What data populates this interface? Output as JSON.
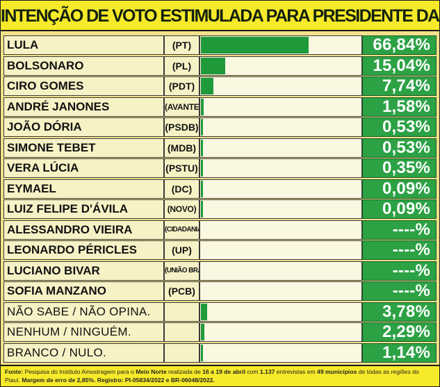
{
  "title": "INTENÇÃO DE VOTO ESTIMULADA PARA PRESIDENTE DA REPÚBLICA",
  "chart_data": {
    "type": "bar",
    "orientation": "horizontal",
    "title": "INTENÇÃO DE VOTO ESTIMULADA PARA PRESIDENTE DA REPÚBLICA",
    "xlim": [
      0,
      100
    ],
    "grid": false,
    "legend": "none",
    "rows": [
      {
        "name": "LULA",
        "party": "(PT)",
        "value": 66.84,
        "label": "66,84%",
        "style": "bold"
      },
      {
        "name": "BOLSONARO",
        "party": "(PL)",
        "value": 15.04,
        "label": "15,04%",
        "style": "bold"
      },
      {
        "name": "CIRO GOMES",
        "party": "(PDT)",
        "value": 7.74,
        "label": "7,74%",
        "style": "bold"
      },
      {
        "name": "ANDRÉ JANONES",
        "party": "(AVANTE)",
        "value": 1.58,
        "label": "1,58%",
        "style": "bold",
        "party_size": "small"
      },
      {
        "name": "JOÃO DÓRIA",
        "party": "(PSDB)",
        "value": 0.53,
        "label": "0,53%",
        "style": "bold"
      },
      {
        "name": "SIMONE TEBET",
        "party": "(MDB)",
        "value": 0.53,
        "label": "0,53%",
        "style": "bold"
      },
      {
        "name": "VERA LÚCIA",
        "party": "(PSTU)",
        "value": 0.35,
        "label": "0,35%",
        "style": "bold"
      },
      {
        "name": "EYMAEL",
        "party": "(DC)",
        "value": 0.09,
        "label": "0,09%",
        "style": "bold"
      },
      {
        "name": "LUIZ FELIPE D'ÁVILA",
        "party": "(NOVO)",
        "value": 0.09,
        "label": "0,09%",
        "style": "bold",
        "party_size": "small"
      },
      {
        "name": "ALESSANDRO VIEIRA",
        "party": "(CIDADANIA)",
        "value": 0,
        "label": "----%",
        "style": "bold",
        "party_size": "tiny"
      },
      {
        "name": "LEONARDO PÉRICLES",
        "party": "(UP)",
        "value": 0,
        "label": "----%",
        "style": "bold"
      },
      {
        "name": "LUCIANO BIVAR",
        "party": "(UNIÃO BRASIL)",
        "value": 0,
        "label": "----%",
        "style": "bold",
        "party_size": "tiny"
      },
      {
        "name": "SOFIA MANZANO",
        "party": "(PCB)",
        "value": 0,
        "label": "----%",
        "style": "bold"
      },
      {
        "name": "NÃO SABE / NÃO OPINA.",
        "party": "",
        "value": 3.78,
        "label": "3,78%",
        "style": "plain"
      },
      {
        "name": "NENHUM / NINGUÉM.",
        "party": "",
        "value": 2.29,
        "label": "2,29%",
        "style": "plain"
      },
      {
        "name": "BRANCO / NULO.",
        "party": "",
        "value": 1.14,
        "label": "1,14%",
        "style": "plain"
      }
    ]
  },
  "footer": {
    "label": "Fonte:",
    "t1": " Pesquisa do Instituto Amostragem para o ",
    "h1": "Meio Norte",
    "t2": " realizada de ",
    "h2": "16 a 19 de abril",
    "t3": " com ",
    "h3": "1.137",
    "t4": " entrevistas em ",
    "h4": "49 municípios",
    "t5": " de todas as regiões do Piauí. ",
    "h5": "Margem de erro de 2,85%. Registro: PI-05834/2022 e BR-06048/2022."
  },
  "colors": {
    "bar": "#1f9a3a",
    "percent_cell": "#2ca245",
    "title_background": "#f6ea2a",
    "background": "#f3e08a"
  }
}
